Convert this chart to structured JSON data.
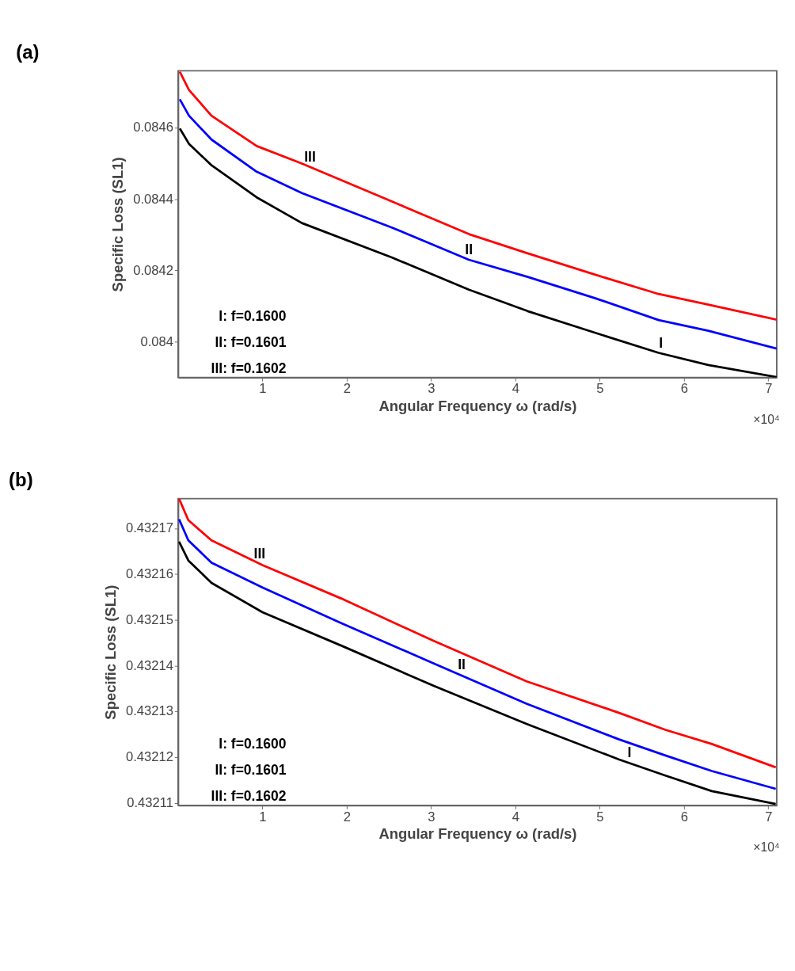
{
  "chart_data": [
    {
      "type": "line",
      "title": "(a)",
      "xlabel": "Angular Frequency  ω (rad/s)",
      "ylabel": "Specific Loss (SL1)",
      "x": [
        0.02,
        0.129,
        0.396,
        0.932,
        1.468,
        2.539,
        3.449,
        4.146,
        4.949,
        5.699,
        6.288,
        7.1
      ],
      "xlim": [
        0,
        7.1
      ],
      "xticks": [
        1,
        2,
        3,
        4,
        5,
        6,
        7
      ],
      "ylim": [
        0.0839,
        0.08476
      ],
      "yticks": [
        0.084,
        0.0842,
        0.0844,
        0.0846
      ],
      "grid": false,
      "line_style": "solid",
      "series": [
        {
          "color": "#ff0000",
          "values": [
            0.084757,
            0.084706,
            0.084634,
            0.084549,
            0.0845,
            0.084393,
            0.084302,
            0.084248,
            0.084188,
            0.084134,
            0.084104,
            0.084062
          ]
        },
        {
          "color": "#0000ff",
          "values": [
            0.08468,
            0.084634,
            0.084567,
            0.084477,
            0.084417,
            0.08432,
            0.08423,
            0.084182,
            0.084122,
            0.084061,
            0.084031,
            0.083981
          ]
        },
        {
          "color": "#000000",
          "values": [
            0.084598,
            0.084555,
            0.084495,
            0.084405,
            0.084333,
            0.084236,
            0.084146,
            0.084086,
            0.084025,
            0.083969,
            0.083935,
            0.083901
          ]
        }
      ],
      "annotations": [
        {
          "text": "III",
          "x": 1.564,
          "y": 0.08449
        },
        {
          "text": "II",
          "x": 3.449,
          "y": 0.08423
        },
        {
          "text": "I",
          "x": 5.726,
          "y": 0.083967
        },
        "I: f=0.1600",
        "II: f=0.1601",
        "III: f=0.1602",
        "×10⁴"
      ]
    },
    {
      "type": "line",
      "title": "(b)",
      "xlabel": "Angular Frequency  ω (rad/s)",
      "ylabel": "Specific Loss (SL1)",
      "x": [
        0.011,
        0.121,
        0.396,
        1.0,
        1.934,
        3.033,
        4.132,
        5.231,
        5.78,
        6.33,
        7.088
      ],
      "xlim": [
        0,
        7.1
      ],
      "xticks": [
        1,
        2,
        3,
        4,
        5,
        6,
        7
      ],
      "ylim": [
        0.4321095,
        0.4321765
      ],
      "yticks": [
        0.43211,
        0.43212,
        0.43213,
        0.43214,
        0.43215,
        0.43216,
        0.43217
      ],
      "grid": false,
      "line_style": "solid",
      "series": [
        {
          "color": "#ff0000",
          "values": [
            0.4321765,
            0.4321718,
            0.4321674,
            0.432162,
            0.4321547,
            0.4321454,
            0.4321366,
            0.4321297,
            0.432126,
            0.4321229,
            0.4321178
          ]
        },
        {
          "color": "#0000ff",
          "values": [
            0.432172,
            0.4321674,
            0.4321625,
            0.4321571,
            0.4321493,
            0.4321405,
            0.4321317,
            0.4321239,
            0.4321204,
            0.432117,
            0.4321131
          ]
        },
        {
          "color": "#000000",
          "values": [
            0.4321671,
            0.432163,
            0.4321581,
            0.4321517,
            0.4321444,
            0.4321356,
            0.4321273,
            0.4321195,
            0.432116,
            0.4321126,
            0.4321098
          ]
        }
      ],
      "annotations": [
        {
          "text": "III",
          "x": 0.967,
          "y": 0.4321622
        },
        {
          "text": "II",
          "x": 3.363,
          "y": 0.4321379
        },
        {
          "text": "I",
          "x": 5.352,
          "y": 0.4321187
        },
        "I: f=0.1600",
        "II: f=0.1601",
        "III: f=0.1602",
        "×10⁴"
      ]
    }
  ]
}
